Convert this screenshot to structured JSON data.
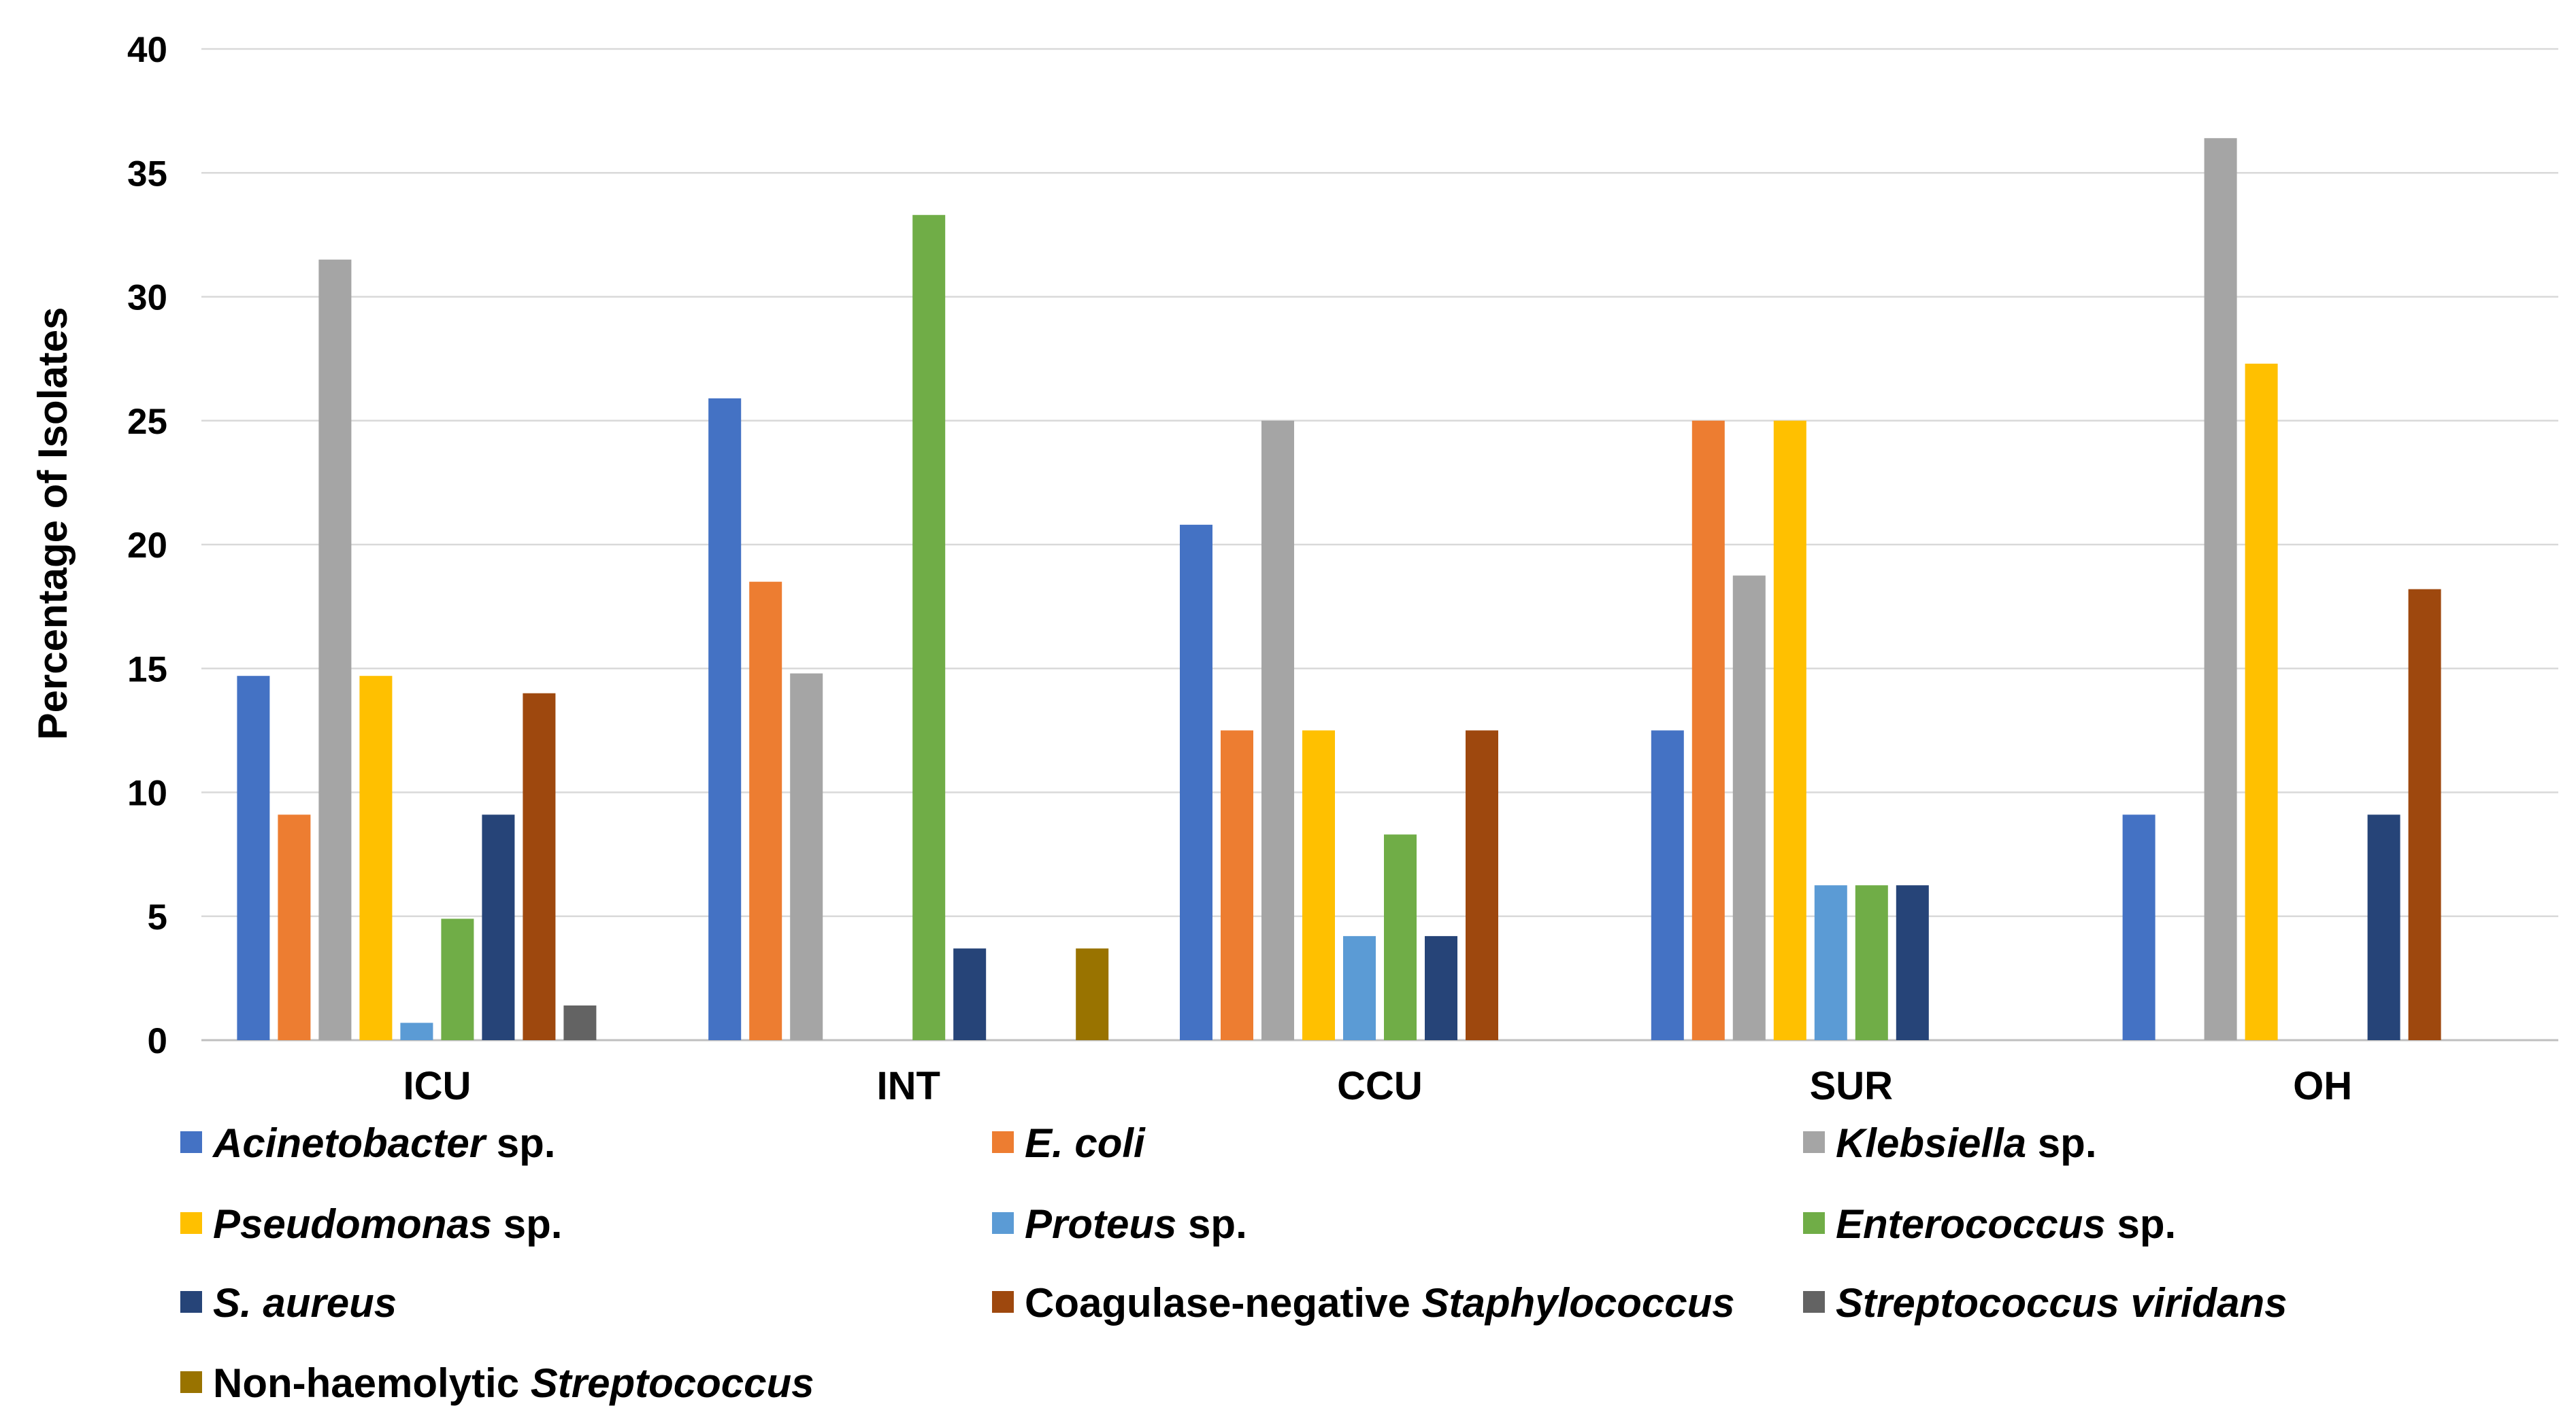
{
  "chart_data": {
    "type": "bar",
    "ylabel": "Percentage of Isolates",
    "xlabel": "",
    "ylim": [
      0,
      40
    ],
    "yticks": [
      0,
      5,
      10,
      15,
      20,
      25,
      30,
      35,
      40
    ],
    "grid": true,
    "legend_placement": "bottom",
    "categories": [
      "ICU",
      "INT",
      "CCU",
      "SUR",
      "OH"
    ],
    "series": [
      {
        "name": "Acinetobacter sp.",
        "label_parts": [
          {
            "t": "Acinetobacter",
            "i": true
          },
          {
            "t": " sp.",
            "i": false
          }
        ],
        "color": "#4472C4",
        "values": [
          14.7,
          25.9,
          20.8,
          12.5,
          9.1
        ]
      },
      {
        "name": "E. coli",
        "label_parts": [
          {
            "t": "E. coli",
            "i": true
          }
        ],
        "color": "#ED7D31",
        "values": [
          9.1,
          18.5,
          12.5,
          25.0,
          0
        ]
      },
      {
        "name": "Klebsiella sp.",
        "label_parts": [
          {
            "t": "Klebsiella",
            "i": true
          },
          {
            "t": " sp.",
            "i": false
          }
        ],
        "color": "#A5A5A5",
        "values": [
          31.5,
          14.8,
          25.0,
          18.75,
          36.4
        ]
      },
      {
        "name": "Pseudomonas sp.",
        "label_parts": [
          {
            "t": "Pseudomonas",
            "i": true
          },
          {
            "t": " sp.",
            "i": false
          }
        ],
        "color": "#FFC000",
        "values": [
          14.7,
          0,
          12.5,
          25.0,
          27.3
        ]
      },
      {
        "name": "Proteus sp.",
        "label_parts": [
          {
            "t": "Proteus",
            "i": true
          },
          {
            "t": " sp.",
            "i": false
          }
        ],
        "color": "#5B9BD5",
        "values": [
          0.7,
          0,
          4.2,
          6.25,
          0
        ]
      },
      {
        "name": "Enterococcus sp.",
        "label_parts": [
          {
            "t": "Enterococcus",
            "i": true
          },
          {
            "t": " sp.",
            "i": false
          }
        ],
        "color": "#70AD47",
        "values": [
          4.9,
          33.3,
          8.3,
          6.25,
          0
        ]
      },
      {
        "name": "S. aureus",
        "label_parts": [
          {
            "t": "S. aureus",
            "i": true
          }
        ],
        "color": "#264478",
        "values": [
          9.1,
          3.7,
          4.2,
          6.25,
          9.1
        ]
      },
      {
        "name": "Coagulase-negative Staphylococcus",
        "label_parts": [
          {
            "t": "Coagulase-negative ",
            "i": false
          },
          {
            "t": "Staphylococcus",
            "i": true
          }
        ],
        "color": "#9E480E",
        "values": [
          14.0,
          0,
          12.5,
          0,
          18.2
        ]
      },
      {
        "name": "Streptococcus viridans",
        "label_parts": [
          {
            "t": "Streptococcus viridans",
            "i": true
          }
        ],
        "color": "#636363",
        "values": [
          1.4,
          0,
          0,
          0,
          0
        ]
      },
      {
        "name": "Non-haemolytic Streptococcus",
        "label_parts": [
          {
            "t": "Non-haemolytic ",
            "i": false
          },
          {
            "t": "Streptococcus",
            "i": true
          }
        ],
        "color": "#997300",
        "values": [
          0,
          3.7,
          0,
          0,
          0
        ]
      }
    ]
  }
}
